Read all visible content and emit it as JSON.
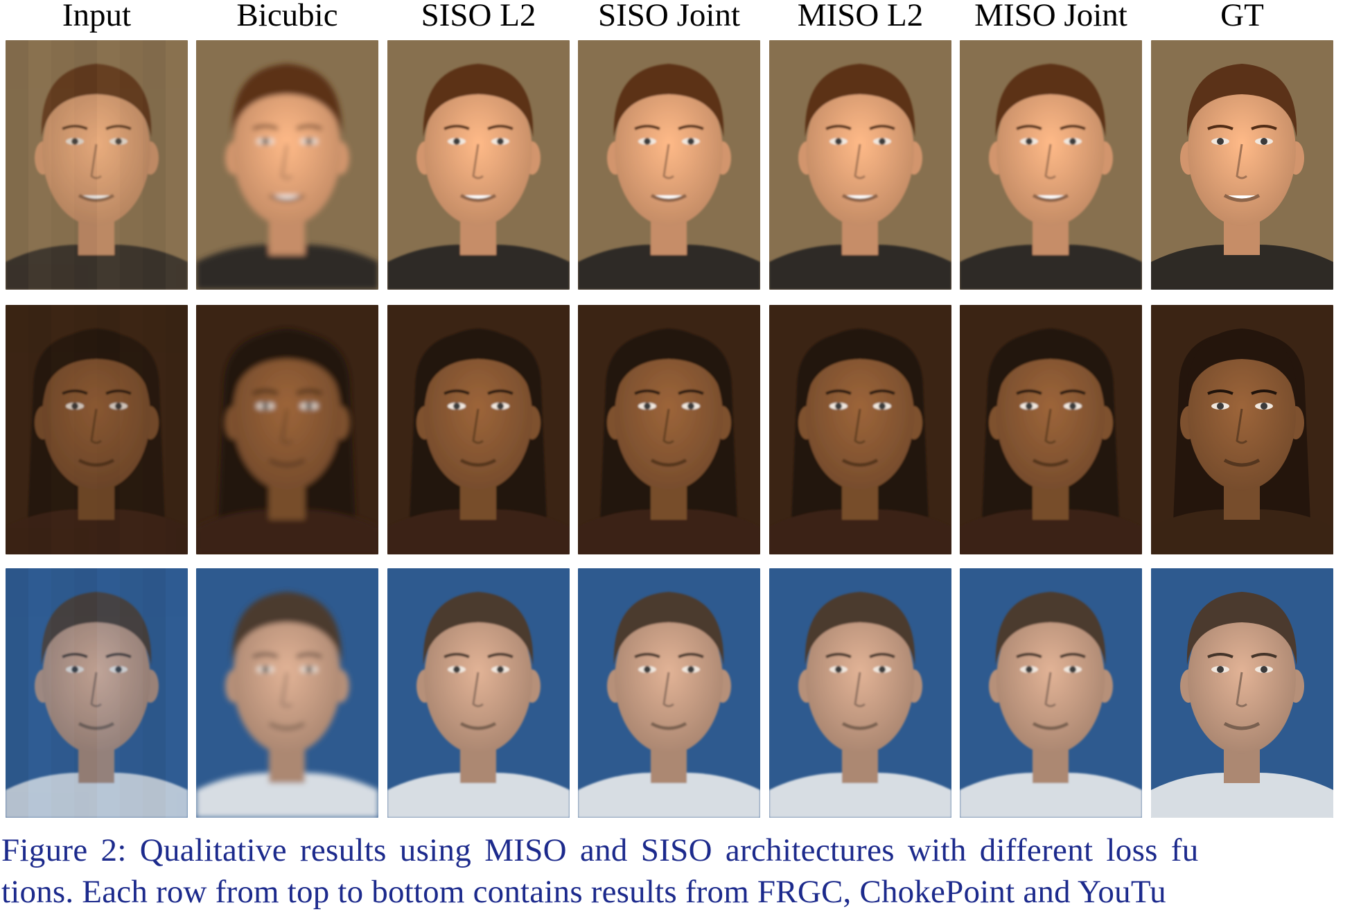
{
  "columns": [
    {
      "label": "Input"
    },
    {
      "label": "Bicubic"
    },
    {
      "label": "SISO L2"
    },
    {
      "label": "SISO Joint"
    },
    {
      "label": "MISO L2"
    },
    {
      "label": "MISO Joint"
    },
    {
      "label": "GT"
    }
  ],
  "rows": [
    {
      "bg": "#87704f",
      "skin": "#e9a679",
      "hair": "#5b3218",
      "shirt": "#2e2a25",
      "long_hair": false
    },
    {
      "bg": "#3b2414",
      "skin": "#8c5a34",
      "hair": "#24150c",
      "shirt": "#3a2414",
      "long_hair": true
    },
    {
      "bg": "#2e5a8f",
      "skin": "#caa086",
      "hair": "#4b3a2e",
      "shirt": "#d7dde3",
      "long_hair": false
    }
  ],
  "caption": {
    "line1": "Figure 2:  Qualitative results using MISO and SISO architectures with different loss fu",
    "line2": "tions. Each row from top to bottom contains results from FRGC, ChokePoint and YouTu"
  }
}
